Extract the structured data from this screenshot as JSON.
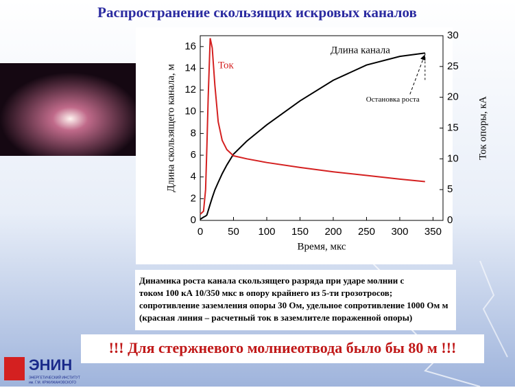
{
  "slide": {
    "title": "Распространение скользящих искровых каналов",
    "caption": [
      "Динамика роста канала скользящего разряда  при ударе  молнии с",
      "током 100 кА 10/350 мкс  в опору крайнего из 5-ти грозотросов;",
      " сопротивление заземления опоры 30 Ом, удельное сопротивление 1000 Ом м",
      " (красная линия – расчетный ток в заземлителе пораженной опоры)"
    ],
    "banner": "!!! Для стержневого молниеотвода было бы 80 м !!!",
    "logo": "ЭНИН",
    "logo_subtitle": [
      "ЭНЕРГЕТИЧЕСКИЙ ИНСТИТУТ",
      "им. Г.М. КРЖИЖАНОВСКОГО"
    ]
  },
  "chart_data": {
    "type": "line",
    "xlabel": "Время,  мкс",
    "ylabel": "Длина скользящего канала,  м",
    "y2label": "Ток опоры,  кА",
    "annotations": [
      "Остановка роста"
    ],
    "x": [
      0,
      5,
      8,
      10,
      12,
      15,
      18,
      22,
      27,
      33,
      40,
      50,
      70,
      100,
      150,
      200,
      250,
      300,
      338
    ],
    "series": [
      {
        "name": "Длина канала",
        "color": "#000000",
        "values": [
          0.1,
          0.3,
          0.4,
          0.5,
          0.9,
          1.5,
          2.1,
          2.8,
          3.5,
          4.3,
          5.1,
          6.1,
          7.3,
          8.8,
          11.0,
          12.9,
          14.3,
          15.1,
          15.4
        ]
      },
      {
        "name": "Ток",
        "color": "#d42020",
        "axis": "y2",
        "values": [
          1,
          1.5,
          5,
          12,
          20,
          29.6,
          28,
          22,
          16,
          13,
          11.5,
          10.5,
          10,
          9.4,
          8.6,
          7.9,
          7.3,
          6.7,
          6.3
        ]
      }
    ],
    "xlim": [
      0,
      365
    ],
    "ylim": [
      0,
      17
    ],
    "y2lim": [
      0,
      30
    ],
    "xticks": [
      0,
      50,
      100,
      150,
      200,
      250,
      300,
      350
    ],
    "yticks": [
      0,
      2,
      4,
      6,
      8,
      10,
      12,
      14,
      16
    ],
    "y2ticks": [
      0,
      5,
      10,
      15,
      20,
      25,
      30
    ]
  }
}
